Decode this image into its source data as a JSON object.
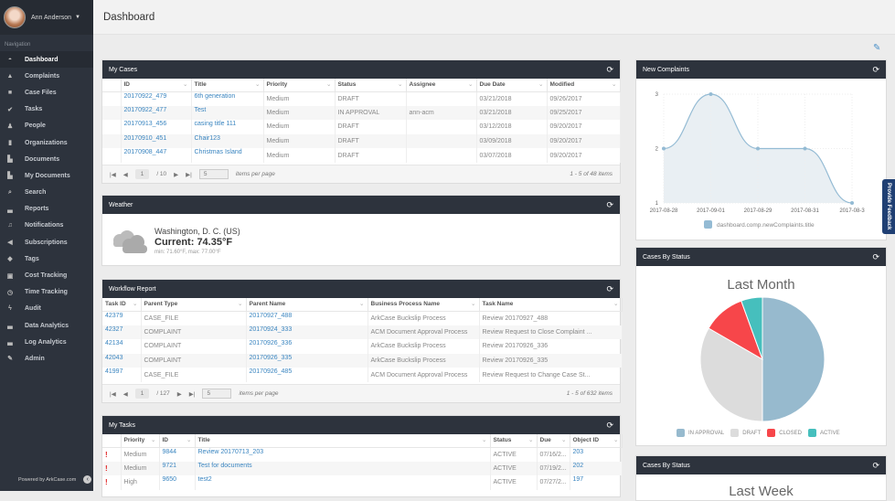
{
  "user": {
    "name": "Ann Anderson"
  },
  "nav": {
    "label": "Navigation",
    "items": [
      {
        "label": "Dashboard",
        "icon": "dashboard-icon",
        "g": "◓"
      },
      {
        "label": "Complaints",
        "icon": "warning-icon",
        "g": "▲"
      },
      {
        "label": "Case Files",
        "icon": "folder-icon",
        "g": "■"
      },
      {
        "label": "Tasks",
        "icon": "check-circle-icon",
        "g": "✔"
      },
      {
        "label": "People",
        "icon": "person-icon",
        "g": "♟"
      },
      {
        "label": "Organizations",
        "icon": "building-icon",
        "g": "▮"
      },
      {
        "label": "Documents",
        "icon": "document-icon",
        "g": "▙"
      },
      {
        "label": "My Documents",
        "icon": "document-icon",
        "g": "▙"
      },
      {
        "label": "Search",
        "icon": "search-icon",
        "g": "⌕"
      },
      {
        "label": "Reports",
        "icon": "bar-chart-icon",
        "g": "▃"
      },
      {
        "label": "Notifications",
        "icon": "bell-icon",
        "g": "♫"
      },
      {
        "label": "Subscriptions",
        "icon": "megaphone-icon",
        "g": "◀"
      },
      {
        "label": "Tags",
        "icon": "tags-icon",
        "g": "◆"
      },
      {
        "label": "Cost Tracking",
        "icon": "money-icon",
        "g": "▣"
      },
      {
        "label": "Time Tracking",
        "icon": "clock-icon",
        "g": "◷"
      },
      {
        "label": "Audit",
        "icon": "bolt-icon",
        "g": "ϟ"
      },
      {
        "label": "Data Analytics",
        "icon": "bar-chart-icon",
        "g": "▃"
      },
      {
        "label": "Log Analytics",
        "icon": "bar-chart-icon",
        "g": "▃"
      },
      {
        "label": "Admin",
        "icon": "wrench-icon",
        "g": "✎"
      }
    ],
    "powered": "Powered by ArkCase.com"
  },
  "header": {
    "title": "Dashboard"
  },
  "my_cases": {
    "title": "My Cases",
    "columns": [
      "ID",
      "Title",
      "Priority",
      "Status",
      "Assignee",
      "Due Date",
      "Modified"
    ],
    "rows": [
      [
        "20170922_479",
        "6th generation",
        "Medium",
        "DRAFT",
        "",
        "03/21/2018",
        "09/26/2017"
      ],
      [
        "20170922_477",
        "Test",
        "Medium",
        "IN APPROVAL",
        "ann-acm",
        "03/21/2018",
        "09/25/2017"
      ],
      [
        "20170913_456",
        "casing title 111",
        "Medium",
        "DRAFT",
        "",
        "03/12/2018",
        "09/20/2017"
      ],
      [
        "20170910_451",
        "Chair123",
        "Medium",
        "DRAFT",
        "",
        "03/09/2018",
        "09/20/2017"
      ],
      [
        "20170908_447",
        "Christmas Island",
        "Medium",
        "DRAFT",
        "",
        "03/07/2018",
        "09/20/2017"
      ]
    ],
    "page": "1",
    "pages": "/ 10",
    "per_page": "5",
    "per_page_label": "items per page",
    "total": "1 - 5 of 48 items"
  },
  "weather": {
    "title": "Weather",
    "location": "Washington, D. C. (US)",
    "current": "Current: 74.35°F",
    "range": "min: 71.60°F, max: 77.00°F"
  },
  "workflow": {
    "title": "Workflow Report",
    "columns": [
      "Task ID",
      "Parent Type",
      "Parent Name",
      "Business Process Name",
      "Task Name"
    ],
    "rows": [
      [
        "42379",
        "CASE_FILE",
        "20170927_488",
        "ArkCase Buckslip Process",
        "Review 20170927_488"
      ],
      [
        "42327",
        "COMPLAINT",
        "20170924_333",
        "ACM Document Approval Process",
        "Review Request to Close Complaint ..."
      ],
      [
        "42134",
        "COMPLAINT",
        "20170926_336",
        "ArkCase Buckslip Process",
        "Review 20170926_336"
      ],
      [
        "42043",
        "COMPLAINT",
        "20170926_335",
        "ArkCase Buckslip Process",
        "Review 20170926_335"
      ],
      [
        "41997",
        "CASE_FILE",
        "20170926_485",
        "ACM Document Approval Process",
        "Review Request to Change Case St..."
      ]
    ],
    "page": "1",
    "pages": "/ 127",
    "per_page": "5",
    "per_page_label": "items per page",
    "total": "1 - 5 of 632 items"
  },
  "my_tasks": {
    "title": "My Tasks",
    "columns": [
      "",
      "Priority",
      "ID",
      "Title",
      "Status",
      "Due",
      "Object ID"
    ],
    "rows": [
      [
        "!",
        "Medium",
        "9844",
        "Review 20170713_203",
        "ACTIVE",
        "07/16/2...",
        "203"
      ],
      [
        "!",
        "Medium",
        "9721",
        "Test for documents",
        "ACTIVE",
        "07/19/2...",
        "202"
      ],
      [
        "!",
        "High",
        "9650",
        "test2",
        "ACTIVE",
        "07/27/2...",
        "197"
      ]
    ]
  },
  "chart_data": [
    {
      "type": "area",
      "title": "New Complaints",
      "x": [
        "2017-08-28",
        "2017-09-01",
        "2017-08-29",
        "2017-08-31",
        "2017-08-3"
      ],
      "values": [
        2,
        3,
        2,
        2,
        1
      ],
      "yticks": [
        1,
        2,
        3
      ],
      "ylim": [
        1,
        3
      ],
      "legend": "dashboard.comp.newComplaints.title",
      "color": "#94bbd4"
    },
    {
      "type": "pie",
      "panel_title": "Cases By Status",
      "title": "Last Month",
      "categories": [
        "IN APPROVAL",
        "DRAFT",
        "CLOSED",
        "ACTIVE"
      ],
      "values": [
        9,
        6,
        2,
        1
      ],
      "colors": [
        "#97bace",
        "#dcdcdc",
        "#f7464a",
        "#46bfbd"
      ]
    }
  ],
  "cases_status_2": {
    "title": "Cases By Status",
    "subtitle": "Last Week"
  },
  "feedback": "Provide Feedback"
}
